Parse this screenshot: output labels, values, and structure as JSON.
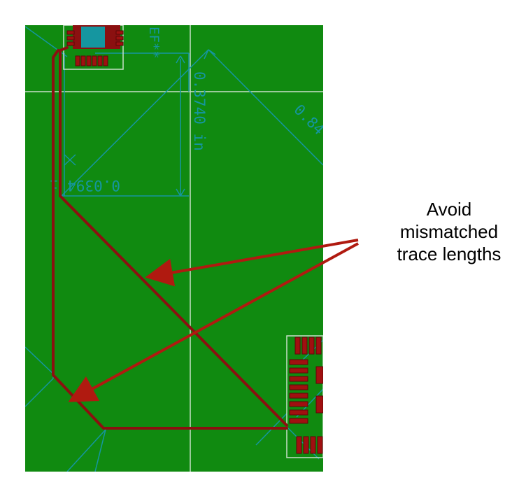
{
  "annotation": {
    "lines": [
      "Avoid",
      "mismatched",
      "trace lengths"
    ]
  },
  "dimensions": {
    "vertical": "0.3740 in",
    "horizontal": "0.0394 i",
    "diagonal": "0.84",
    "refdes": "EF**"
  },
  "colors": {
    "board": "#108a10",
    "trace": "#8b1010",
    "pad": "#a01010",
    "silk_dim": "#1596a0",
    "grid": "#c8e0c8",
    "arrow": "#b01a10"
  }
}
